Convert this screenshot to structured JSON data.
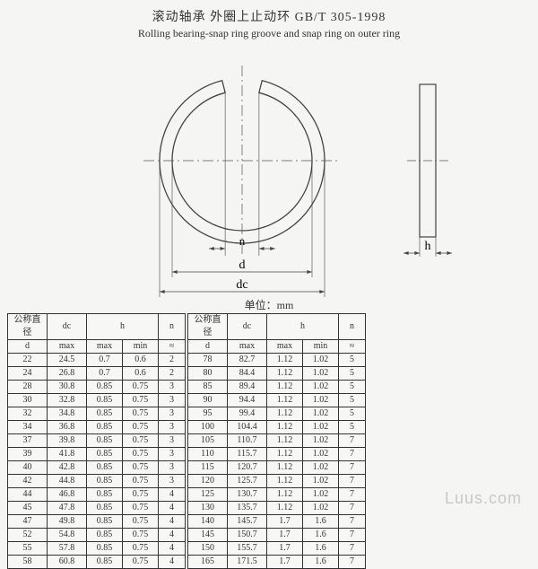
{
  "title": {
    "zh": "滚动轴承  外圈上止动环  GB/T 305-1998",
    "en": "Rolling bearing-snap ring groove and snap ring on outer ring"
  },
  "unit_label": "单位：mm",
  "diagram": {
    "ring_stroke": "#444444",
    "ring_fill": "#f5f5f3",
    "centerline_stroke": "#555555",
    "dim_stroke": "#444444",
    "label_n": "n",
    "label_d": "d",
    "label_dc": "dc",
    "label_h": "h",
    "outer_r": 92,
    "inner_r": 78,
    "side_width": 18,
    "side_height": 170
  },
  "table_headers": {
    "d_top": "公称直径",
    "d": "d",
    "dc": "dc",
    "dc_sub": "max",
    "h": "h",
    "h_max": "max",
    "h_min": "min",
    "n": "n",
    "n_sub": "≈"
  },
  "left_rows": [
    {
      "d": "22",
      "dc": "24.5",
      "hmax": "0.7",
      "hmin": "0.6",
      "n": "2"
    },
    {
      "d": "24",
      "dc": "26.8",
      "hmax": "0.7",
      "hmin": "0.6",
      "n": "2"
    },
    {
      "d": "28",
      "dc": "30.8",
      "hmax": "0.85",
      "hmin": "0.75",
      "n": "3"
    },
    {
      "d": "30",
      "dc": "32.8",
      "hmax": "0.85",
      "hmin": "0.75",
      "n": "3"
    },
    {
      "d": "32",
      "dc": "34.8",
      "hmax": "0.85",
      "hmin": "0.75",
      "n": "3"
    },
    {
      "d": "34",
      "dc": "36.8",
      "hmax": "0.85",
      "hmin": "0.75",
      "n": "3"
    },
    {
      "d": "37",
      "dc": "39.8",
      "hmax": "0.85",
      "hmin": "0.75",
      "n": "3"
    },
    {
      "d": "39",
      "dc": "41.8",
      "hmax": "0.85",
      "hmin": "0.75",
      "n": "3"
    },
    {
      "d": "40",
      "dc": "42.8",
      "hmax": "0.85",
      "hmin": "0.75",
      "n": "3"
    },
    {
      "d": "42",
      "dc": "44.8",
      "hmax": "0.85",
      "hmin": "0.75",
      "n": "3"
    },
    {
      "d": "44",
      "dc": "46.8",
      "hmax": "0.85",
      "hmin": "0.75",
      "n": "4"
    },
    {
      "d": "45",
      "dc": "47.8",
      "hmax": "0.85",
      "hmin": "0.75",
      "n": "4"
    },
    {
      "d": "47",
      "dc": "49.8",
      "hmax": "0.85",
      "hmin": "0.75",
      "n": "4"
    },
    {
      "d": "52",
      "dc": "54.8",
      "hmax": "0.85",
      "hmin": "0.75",
      "n": "4"
    },
    {
      "d": "55",
      "dc": "57.8",
      "hmax": "0.85",
      "hmin": "0.75",
      "n": "4"
    },
    {
      "d": "58",
      "dc": "60.8",
      "hmax": "0.85",
      "hmin": "0.75",
      "n": "4"
    }
  ],
  "right_rows": [
    {
      "d": "78",
      "dc": "82.7",
      "hmax": "1.12",
      "hmin": "1.02",
      "n": "5"
    },
    {
      "d": "80",
      "dc": "84.4",
      "hmax": "1.12",
      "hmin": "1.02",
      "n": "5"
    },
    {
      "d": "85",
      "dc": "89.4",
      "hmax": "1.12",
      "hmin": "1.02",
      "n": "5"
    },
    {
      "d": "90",
      "dc": "94.4",
      "hmax": "1.12",
      "hmin": "1.02",
      "n": "5"
    },
    {
      "d": "95",
      "dc": "99.4",
      "hmax": "1.12",
      "hmin": "1.02",
      "n": "5"
    },
    {
      "d": "100",
      "dc": "104.4",
      "hmax": "1.12",
      "hmin": "1.02",
      "n": "5"
    },
    {
      "d": "105",
      "dc": "110.7",
      "hmax": "1.12",
      "hmin": "1.02",
      "n": "7"
    },
    {
      "d": "110",
      "dc": "115.7",
      "hmax": "1.12",
      "hmin": "1.02",
      "n": "7"
    },
    {
      "d": "115",
      "dc": "120.7",
      "hmax": "1.12",
      "hmin": "1.02",
      "n": "7"
    },
    {
      "d": "120",
      "dc": "125.7",
      "hmax": "1.12",
      "hmin": "1.02",
      "n": "7"
    },
    {
      "d": "125",
      "dc": "130.7",
      "hmax": "1.12",
      "hmin": "1.02",
      "n": "7"
    },
    {
      "d": "130",
      "dc": "135.7",
      "hmax": "1.12",
      "hmin": "1.02",
      "n": "7"
    },
    {
      "d": "140",
      "dc": "145.7",
      "hmax": "1.7",
      "hmin": "1.6",
      "n": "7"
    },
    {
      "d": "145",
      "dc": "150.7",
      "hmax": "1.7",
      "hmin": "1.6",
      "n": "7"
    },
    {
      "d": "150",
      "dc": "155.7",
      "hmax": "1.7",
      "hmin": "1.6",
      "n": "7"
    },
    {
      "d": "165",
      "dc": "171.5",
      "hmax": "1.7",
      "hmin": "1.6",
      "n": "7"
    }
  ],
  "watermark": "Luus.com"
}
